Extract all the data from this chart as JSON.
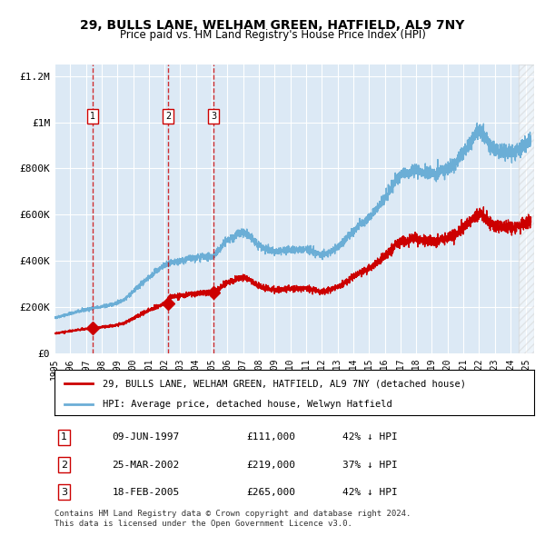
{
  "title": "29, BULLS LANE, WELHAM GREEN, HATFIELD, AL9 7NY",
  "subtitle": "Price paid vs. HM Land Registry's House Price Index (HPI)",
  "background_color": "#dce9f5",
  "plot_bg_color": "#dce9f5",
  "hpi_color": "#6baed6",
  "price_color": "#cc0000",
  "marker_color": "#cc0000",
  "vline_color": "#cc0000",
  "transactions": [
    {
      "label": "1",
      "date_str": "09-JUN-1997",
      "date_num": 1997.44,
      "price": 111000,
      "hpi_pct": 42
    },
    {
      "label": "2",
      "date_str": "25-MAR-2002",
      "date_num": 2002.23,
      "price": 219000,
      "hpi_pct": 37
    },
    {
      "label": "3",
      "date_str": "18-FEB-2005",
      "date_num": 2005.12,
      "price": 265000,
      "hpi_pct": 42
    }
  ],
  "legend_entries": [
    "29, BULLS LANE, WELHAM GREEN, HATFIELD, AL9 7NY (detached house)",
    "HPI: Average price, detached house, Welwyn Hatfield"
  ],
  "footer_lines": [
    "Contains HM Land Registry data © Crown copyright and database right 2024.",
    "This data is licensed under the Open Government Licence v3.0."
  ],
  "ylim": [
    0,
    1250000
  ],
  "yticks": [
    0,
    200000,
    400000,
    600000,
    800000,
    1000000,
    1200000
  ],
  "ytick_labels": [
    "£0",
    "£200K",
    "£400K",
    "£600K",
    "£800K",
    "£1M",
    "£1.2M"
  ],
  "xmin": 1995.0,
  "xmax": 2025.5,
  "hatch_region_start": 2024.5,
  "hatch_region_end": 2025.5
}
